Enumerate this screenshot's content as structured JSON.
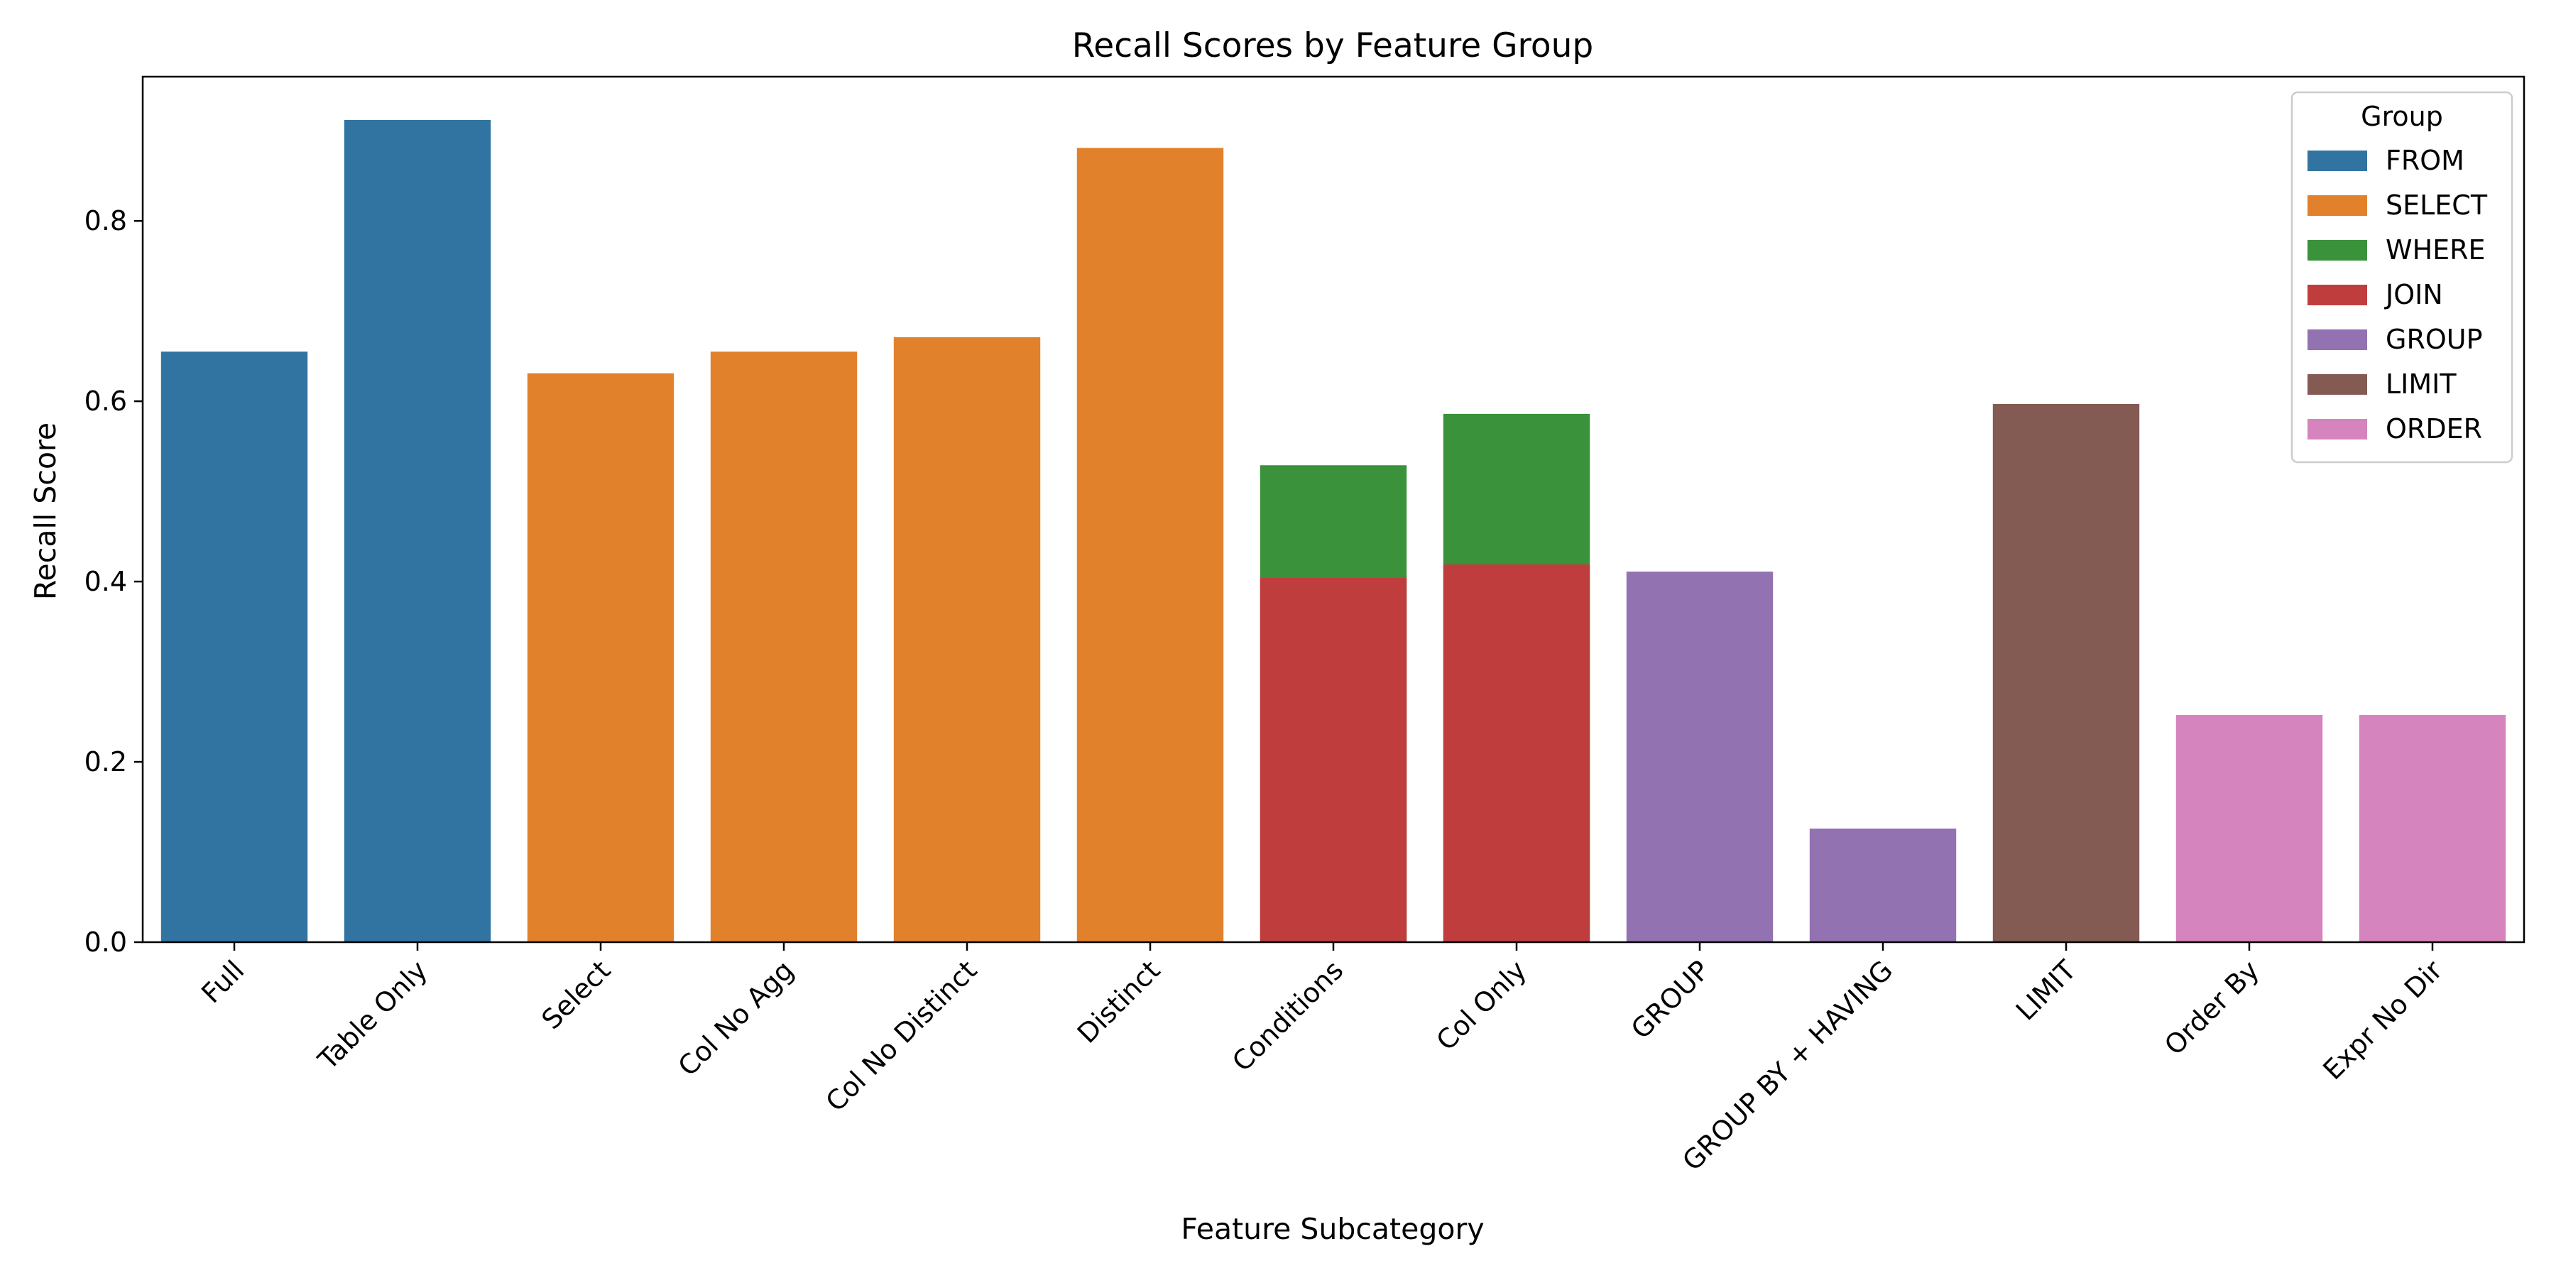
{
  "chart_data": {
    "type": "bar",
    "title": "Recall Scores by Feature Group",
    "xlabel": "Feature Subcategory",
    "ylabel": "Recall Score",
    "ylim": [
      0,
      0.96
    ],
    "yticks": [
      "0.0",
      "0.2",
      "0.4",
      "0.6",
      "0.8"
    ],
    "grid": false,
    "categories": [
      "Full",
      "Table Only",
      "Select",
      "Col No Agg",
      "Col No Distinct",
      "Distinct",
      "Conditions",
      "Col Only",
      "GROUP",
      "GROUP BY + HAVING",
      "LIMIT",
      "Order By",
      "Expr No Dir"
    ],
    "legend": {
      "title": "Group",
      "placement": "top-right",
      "entries": [
        {
          "name": "FROM",
          "color": "#3274a1"
        },
        {
          "name": "SELECT",
          "color": "#e1812c"
        },
        {
          "name": "WHERE",
          "color": "#3a923a"
        },
        {
          "name": "JOIN",
          "color": "#c03d3e"
        },
        {
          "name": "GROUP",
          "color": "#9372b2"
        },
        {
          "name": "LIMIT",
          "color": "#845b53"
        },
        {
          "name": "ORDER",
          "color": "#d684bd"
        }
      ]
    },
    "bars": [
      {
        "category": "Full",
        "group": "FROM",
        "value": 0.655
      },
      {
        "category": "Table Only",
        "group": "FROM",
        "value": 0.912
      },
      {
        "category": "Select",
        "group": "SELECT",
        "value": 0.631
      },
      {
        "category": "Col No Agg",
        "group": "SELECT",
        "value": 0.655
      },
      {
        "category": "Col No Distinct",
        "group": "SELECT",
        "value": 0.671
      },
      {
        "category": "Distinct",
        "group": "SELECT",
        "value": 0.881
      },
      {
        "category": "Conditions",
        "group": "WHERE",
        "value": 0.529
      },
      {
        "category": "Col Only",
        "group": "WHERE",
        "value": 0.586
      },
      {
        "category": "Conditions",
        "group": "JOIN",
        "value": 0.404
      },
      {
        "category": "Col Only",
        "group": "JOIN",
        "value": 0.419
      },
      {
        "category": "GROUP",
        "group": "GROUP",
        "value": 0.411
      },
      {
        "category": "GROUP BY + HAVING",
        "group": "GROUP",
        "value": 0.126
      },
      {
        "category": "LIMIT",
        "group": "LIMIT",
        "value": 0.597
      },
      {
        "category": "Order By",
        "group": "ORDER",
        "value": 0.252
      },
      {
        "category": "Expr No Dir",
        "group": "ORDER",
        "value": 0.252
      }
    ]
  }
}
